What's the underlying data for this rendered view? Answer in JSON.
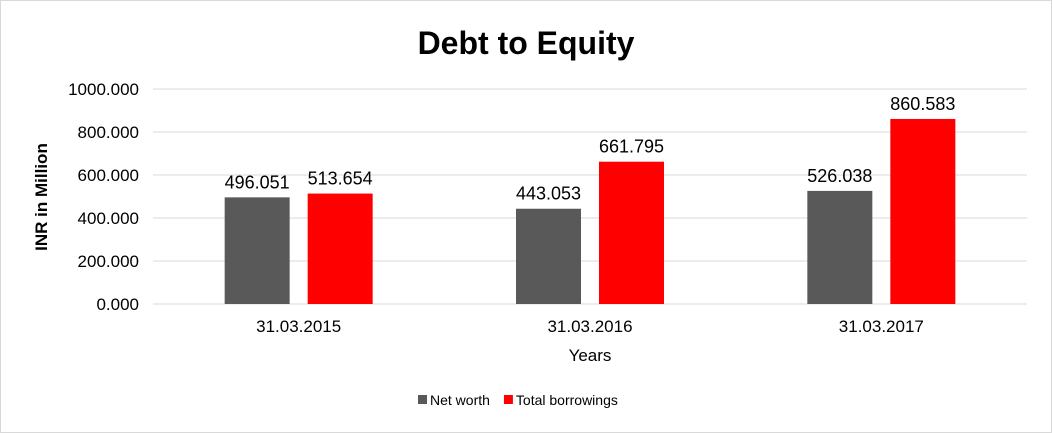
{
  "chart_data": {
    "type": "bar",
    "title": "Debt to Equity",
    "xlabel": "Years",
    "ylabel": "INR in Million",
    "categories": [
      "31.03.2015",
      "31.03.2016",
      "31.03.2017"
    ],
    "series": [
      {
        "name": "Net worth",
        "values": [
          496.051,
          443.053,
          526.038
        ],
        "color": "#595959"
      },
      {
        "name": "Total borrowings",
        "values": [
          513.654,
          661.795,
          860.583
        ],
        "color": "#ff0000"
      }
    ],
    "ylim": [
      0,
      1000
    ],
    "yticks": [
      "0.000",
      "200.000",
      "400.000",
      "600.000",
      "800.000",
      "1000.000"
    ],
    "data_labels": [
      [
        "496.051",
        "443.053",
        "526.038"
      ],
      [
        "513.654",
        "661.795",
        "860.583"
      ]
    ],
    "grid": true,
    "legend": "bottom"
  }
}
